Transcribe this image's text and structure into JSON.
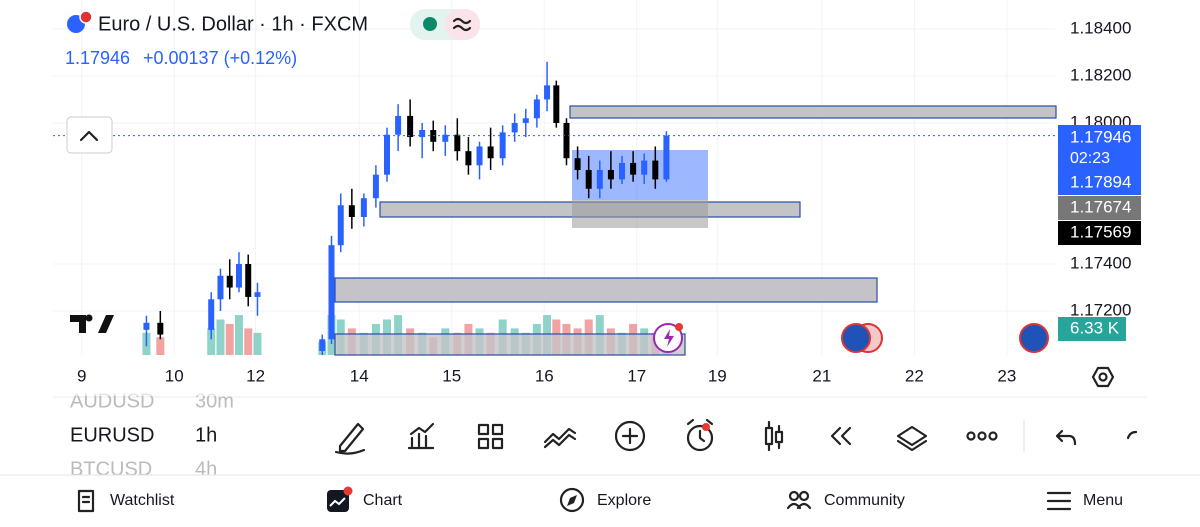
{
  "header": {
    "title": "Euro / U.S. Dollar · 1h · FXCM",
    "price": "1.17946",
    "change": "+0.00137 (+0.12%)"
  },
  "chart_data": {
    "type": "candlestick",
    "x": [
      0.7,
      0.85,
      1.4,
      1.5,
      1.6,
      1.7,
      1.8,
      1.9,
      2.6,
      2.7,
      2.8,
      2.92,
      3.05,
      3.18,
      3.3,
      3.42,
      3.55,
      3.68,
      3.8,
      3.93,
      4.06,
      4.18,
      4.3,
      4.42,
      4.55,
      4.68,
      4.8,
      4.92,
      5.03,
      5.13,
      5.24,
      5.36,
      5.48,
      5.6,
      5.72,
      5.84,
      5.96,
      6.08,
      6.2,
      6.32
    ],
    "open": [
      1.1712,
      1.1715,
      1.1712,
      1.1725,
      1.1735,
      1.173,
      1.174,
      1.1726,
      1.1703,
      1.1708,
      1.1748,
      1.1765,
      1.176,
      1.1768,
      1.1778,
      1.1795,
      1.1803,
      1.1794,
      1.1797,
      1.1792,
      1.1795,
      1.1788,
      1.1782,
      1.179,
      1.1785,
      1.1796,
      1.18,
      1.1802,
      1.181,
      1.1816,
      1.18,
      1.1785,
      1.178,
      1.1772,
      1.178,
      1.1776,
      1.1783,
      1.1778,
      1.1784,
      1.1776
    ],
    "high": [
      1.1718,
      1.172,
      1.1728,
      1.1738,
      1.1742,
      1.1745,
      1.1744,
      1.1732,
      1.171,
      1.1752,
      1.177,
      1.1772,
      1.177,
      1.1782,
      1.1798,
      1.1808,
      1.181,
      1.18,
      1.1801,
      1.1799,
      1.1802,
      1.1794,
      1.1792,
      1.1798,
      1.1799,
      1.1804,
      1.1806,
      1.1812,
      1.1826,
      1.1818,
      1.1802,
      1.179,
      1.1786,
      1.1784,
      1.1788,
      1.1786,
      1.1788,
      1.1787,
      1.179,
      1.17965
    ],
    "low": [
      1.1705,
      1.1708,
      1.1708,
      1.172,
      1.1725,
      1.1728,
      1.1722,
      1.1718,
      1.17,
      1.1706,
      1.1745,
      1.1755,
      1.1756,
      1.1764,
      1.1775,
      1.1788,
      1.179,
      1.1785,
      1.1788,
      1.1786,
      1.1784,
      1.1778,
      1.1776,
      1.178,
      1.1782,
      1.1792,
      1.1794,
      1.1798,
      1.1805,
      1.1798,
      1.1782,
      1.1776,
      1.1768,
      1.1768,
      1.1772,
      1.1774,
      1.1775,
      1.1774,
      1.1772,
      1.1775
    ],
    "close": [
      1.1715,
      1.171,
      1.1725,
      1.1735,
      1.173,
      1.174,
      1.1726,
      1.1728,
      1.1708,
      1.1748,
      1.1765,
      1.176,
      1.1768,
      1.1778,
      1.1795,
      1.1803,
      1.1794,
      1.1797,
      1.1792,
      1.1795,
      1.1788,
      1.1782,
      1.179,
      1.1785,
      1.1796,
      1.18,
      1.1802,
      1.181,
      1.1816,
      1.18,
      1.1785,
      1.178,
      1.1772,
      1.178,
      1.1776,
      1.1783,
      1.1778,
      1.1784,
      1.1776,
      1.17946
    ],
    "volume": [
      5,
      4,
      6,
      8,
      7,
      9,
      6,
      5,
      3,
      9,
      8,
      6,
      5,
      7,
      8,
      9,
      6,
      5,
      4,
      6,
      5,
      7,
      6,
      5,
      8,
      6,
      5,
      7,
      9,
      8,
      7,
      6,
      8,
      9,
      6,
      5,
      7,
      6,
      5,
      4
    ],
    "volume_lim": [
      0,
      80
    ],
    "up_color": "#2962ff",
    "down_color": "#000000",
    "volume_up_color": "#8fd3c8",
    "volume_down_color": "#f3a2a2",
    "xlim": [
      -0.31,
      10.52
    ],
    "xticks": [
      {
        "value": 0,
        "label": "9"
      },
      {
        "value": 1,
        "label": "10"
      },
      {
        "value": 1.88,
        "label": "12"
      },
      {
        "value": 3,
        "label": "14"
      },
      {
        "value": 4,
        "label": "15"
      },
      {
        "value": 5,
        "label": "16"
      },
      {
        "value": 6,
        "label": "17"
      },
      {
        "value": 6.87,
        "label": "19"
      },
      {
        "value": 8,
        "label": "21"
      },
      {
        "value": 9,
        "label": "22"
      },
      {
        "value": 10,
        "label": "23"
      }
    ],
    "ylim": [
      1.17013,
      1.18523
    ],
    "yticks": [
      {
        "value": 1.172,
        "label": "1.17200"
      },
      {
        "value": 1.174,
        "label": "1.17400"
      },
      {
        "value": 1.18,
        "label": "1.18000"
      },
      {
        "value": 1.182,
        "label": "1.18200"
      },
      {
        "value": 1.184,
        "label": "1.18400"
      }
    ],
    "grid": true,
    "last_price": 1.17946
  },
  "price_tags": [
    {
      "label": "1.17946",
      "sub": "02:23"
    },
    {
      "label": "1.17894"
    },
    {
      "label": "1.17674"
    },
    {
      "label": "1.17569"
    },
    {
      "label": "6.33 K"
    }
  ],
  "symbols": [
    {
      "symbol": "AUDUSD",
      "interval": "30m"
    },
    {
      "symbol": "EURUSD",
      "interval": "1h"
    },
    {
      "symbol": "BTCUSD",
      "interval": "4h"
    }
  ],
  "nav": [
    "Watchlist",
    "Chart",
    "Explore",
    "Community",
    "Menu"
  ]
}
